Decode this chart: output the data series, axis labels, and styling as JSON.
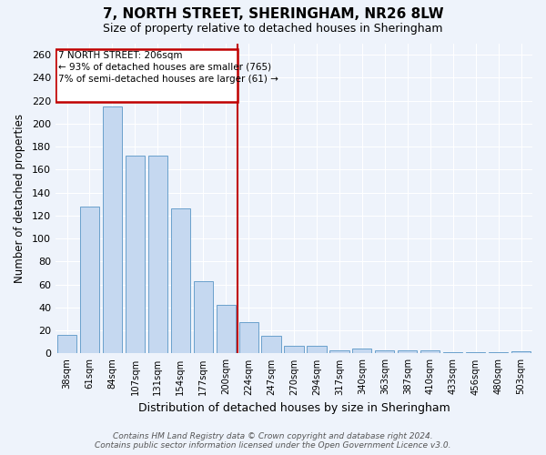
{
  "title": "7, NORTH STREET, SHERINGHAM, NR26 8LW",
  "subtitle": "Size of property relative to detached houses in Sheringham",
  "xlabel": "Distribution of detached houses by size in Sheringham",
  "ylabel": "Number of detached properties",
  "categories": [
    "38sqm",
    "61sqm",
    "84sqm",
    "107sqm",
    "131sqm",
    "154sqm",
    "177sqm",
    "200sqm",
    "224sqm",
    "247sqm",
    "270sqm",
    "294sqm",
    "317sqm",
    "340sqm",
    "363sqm",
    "387sqm",
    "410sqm",
    "433sqm",
    "456sqm",
    "480sqm",
    "503sqm"
  ],
  "values": [
    16,
    128,
    215,
    172,
    172,
    126,
    63,
    42,
    27,
    15,
    7,
    7,
    3,
    4,
    3,
    3,
    3,
    1,
    1,
    1,
    2
  ],
  "bar_color": "#c5d8f0",
  "bar_edge_color": "#6aa0cc",
  "fig_bg_color": "#eef3fb",
  "ax_bg_color": "#eef3fb",
  "grid_color": "#ffffff",
  "vline_x": 7.5,
  "vline_color": "#c00000",
  "ann_line1": "7 NORTH STREET: 206sqm",
  "ann_line2": "← 93% of detached houses are smaller (765)",
  "ann_line3": "7% of semi-detached houses are larger (61) →",
  "ann_box_color": "#c00000",
  "footer_text": "Contains HM Land Registry data © Crown copyright and database right 2024.\nContains public sector information licensed under the Open Government Licence v3.0.",
  "ylim": [
    0,
    270
  ],
  "yticks": [
    0,
    20,
    40,
    60,
    80,
    100,
    120,
    140,
    160,
    180,
    200,
    220,
    240,
    260
  ]
}
